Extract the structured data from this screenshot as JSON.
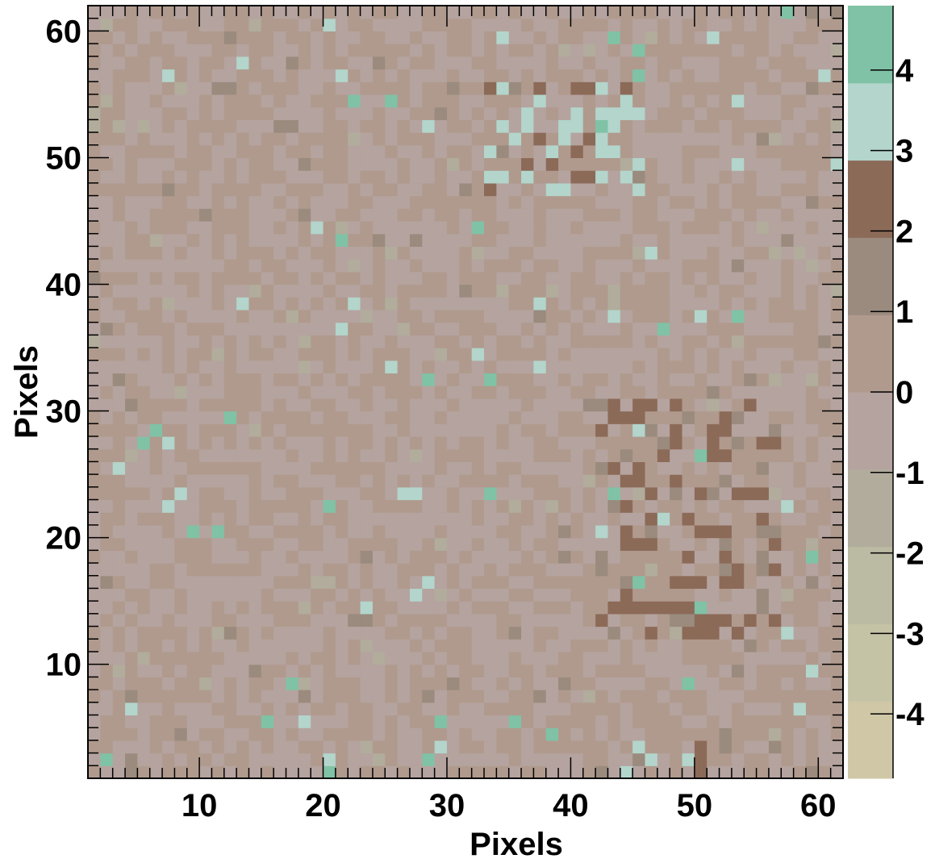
{
  "chart_data": {
    "type": "heatmap",
    "title": "",
    "xlabel": "Pixels",
    "ylabel": "Pixels",
    "x_range": [
      1,
      62
    ],
    "y_range": [
      1,
      62
    ],
    "nx": 61,
    "ny": 61,
    "x_ticks": [
      10,
      20,
      30,
      40,
      50,
      60
    ],
    "y_ticks": [
      10,
      20,
      30,
      40,
      50,
      60
    ],
    "x_tick_labels": [
      "10",
      "20",
      "30",
      "40",
      "50",
      "60"
    ],
    "y_tick_labels": [
      "10",
      "20",
      "30",
      "40",
      "50",
      "60"
    ],
    "z_range": [
      -4.8,
      4.8
    ],
    "z_ticks": [
      -4,
      -3,
      -2,
      -1,
      0,
      1,
      2,
      3,
      4
    ],
    "z_tick_labels": [
      "-4",
      "-3",
      "-2",
      "-1",
      "0",
      "1",
      "2",
      "3",
      "4"
    ],
    "palette": [
      "#cfc7a6",
      "#c5c3a6",
      "#bbbaa2",
      "#b1ac9c",
      "#b5a39f",
      "#b09a8d",
      "#9a8b7e",
      "#8c6a58",
      "#b3d5cb",
      "#80c2a5"
    ],
    "grid": false,
    "legend": "colorbar-right",
    "hot_regions": [
      {
        "x": [
          33,
          45
        ],
        "y": [
          47,
          55
        ],
        "level": 3
      },
      {
        "x": [
          42,
          56
        ],
        "y": [
          12,
          30
        ],
        "level": 2
      },
      {
        "x": [
          44,
          50
        ],
        "y": [
          1,
          3
        ],
        "level": 3
      }
    ]
  }
}
